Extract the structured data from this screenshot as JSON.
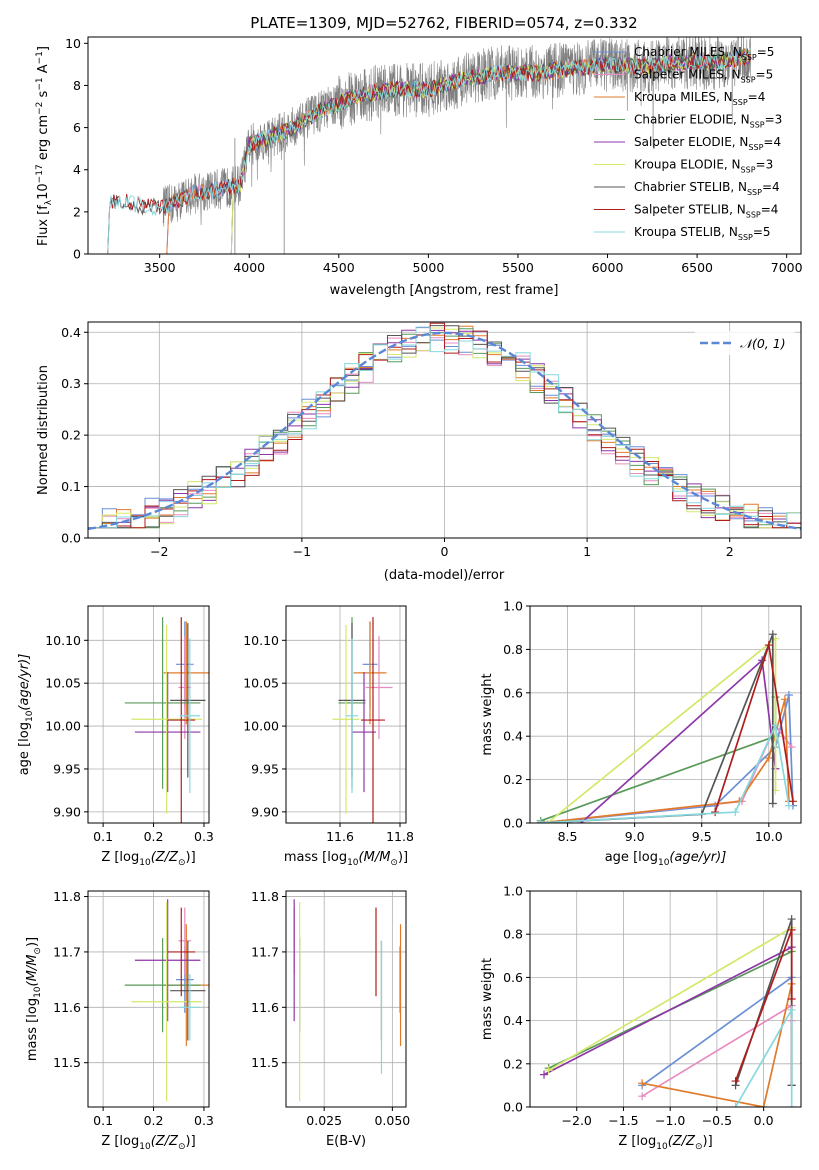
{
  "colors": {
    "Chabrier MILES": "#6a8fd6",
    "Salpeter MILES": "#e88bc0",
    "Kroupa MILES": "#e07b2a",
    "Chabrier ELODIE": "#5a9a5a",
    "Salpeter ELODIE": "#8e35a8",
    "Kroupa ELODIE": "#d4e86a",
    "Chabrier STELIB": "#555555",
    "Salpeter STELIB": "#b01c1c",
    "Kroupa STELIB": "#86d8de",
    "data": "#808080",
    "normal": "#5b88d6"
  },
  "chart_data": [
    {
      "id": "spectrum",
      "type": "line",
      "title": "PLATE=1309, MJD=52762, FIBERID=0574, z=0.332",
      "xlabel": "wavelength [Angstrom, rest frame]",
      "ylabel": "Flux [f",
      "ylabel_sub": "λ",
      "ylabel_rest": "10",
      "ylabel_sup1": "−17",
      "ylabel_mid": " erg cm",
      "ylabel_sup2": "−2",
      "ylabel_mid2": " s",
      "ylabel_sup3": "−1",
      "ylabel_end": " A",
      "ylabel_sup4": "−1",
      "ylabel_close": "]",
      "xlim": [
        3100,
        7080
      ],
      "ylim": [
        0,
        10.3
      ],
      "xticks": [
        "3500",
        "4000",
        "4500",
        "5000",
        "5500",
        "6000",
        "6500",
        "7000"
      ],
      "yticks": [
        "0",
        "2",
        "4",
        "6",
        "8",
        "10"
      ],
      "legend": [
        {
          "name": "Chabrier MILES",
          "lib": "MILES",
          "n": "5"
        },
        {
          "name": "Salpeter MILES",
          "lib": "MILES",
          "n": "5"
        },
        {
          "name": "Kroupa MILES",
          "lib": "MILES",
          "n": "4"
        },
        {
          "name": "Chabrier ELODIE",
          "lib": "ELODIE",
          "n": "3"
        },
        {
          "name": "Salpeter ELODIE",
          "lib": "ELODIE",
          "n": "4"
        },
        {
          "name": "Kroupa ELODIE",
          "lib": "ELODIE",
          "n": "3"
        },
        {
          "name": "Chabrier STELIB",
          "lib": "STELIB",
          "n": "4"
        },
        {
          "name": "Salpeter STELIB",
          "lib": "STELIB",
          "n": "4"
        },
        {
          "name": "Kroupa STELIB",
          "lib": "STELIB",
          "n": "5"
        }
      ],
      "legend_prefix": "N",
      "legend_sub": "SSP",
      "legend_placement": "top-right",
      "continuum": [
        [
          3210,
          0
        ],
        [
          3220,
          2.5
        ],
        [
          3300,
          2.5
        ],
        [
          3450,
          2.2
        ],
        [
          3550,
          2.3
        ],
        [
          3700,
          2.9
        ],
        [
          3850,
          3.1
        ],
        [
          3950,
          3.3
        ],
        [
          4000,
          5.2
        ],
        [
          4200,
          5.8
        ],
        [
          4400,
          6.8
        ],
        [
          4600,
          7.5
        ],
        [
          4800,
          7.8
        ],
        [
          5000,
          7.8
        ],
        [
          5200,
          8.3
        ],
        [
          5400,
          8.6
        ],
        [
          5600,
          8.6
        ],
        [
          5800,
          8.8
        ],
        [
          6000,
          9.0
        ],
        [
          6200,
          8.9
        ],
        [
          6400,
          9.1
        ],
        [
          6600,
          9.1
        ],
        [
          6800,
          9.4
        ],
        [
          7000,
          9.4
        ]
      ],
      "model_starts": {
        "Chabrier MILES": 3540,
        "Salpeter MILES": 3540,
        "Kroupa MILES": 3540,
        "Chabrier ELODIE": 3900,
        "Salpeter ELODIE": 3900,
        "Kroupa ELODIE": 3900,
        "Chabrier STELIB": 3210,
        "Salpeter STELIB": 3210,
        "Kroupa STELIB": 3210
      },
      "data_range": [
        3520,
        6800
      ]
    },
    {
      "id": "residuals",
      "type": "line",
      "xlabel": "(data-model)/error",
      "ylabel": "Normed distribution",
      "xlim": [
        -2.5,
        2.5
      ],
      "ylim": [
        0,
        0.42
      ],
      "xticks": [
        -2,
        -1,
        0,
        1,
        2
      ],
      "xtick_labels": [
        "−2",
        "−1",
        "0",
        "1",
        "2"
      ],
      "yticks": [
        0.0,
        0.1,
        0.2,
        0.3,
        0.4
      ],
      "ytick_labels": [
        "0.0",
        "0.1",
        "0.2",
        "0.3",
        "0.4"
      ],
      "legend": "𝒩(0, 1)",
      "legend_placement": "top-right",
      "bin_width": 0.1
    },
    {
      "id": "age_vs_Z",
      "type": "scatter",
      "xlabel": "Z [log",
      "xlabel_sub": "10",
      "xlabel_rest": "(Z/Z",
      "xlabel_sub2": "⊙",
      "xlabel_end": ")]",
      "ylabel": "age  [log",
      "ylabel_sub": "10",
      "ylabel_rest": "(age/yr)]",
      "xlim": [
        0.07,
        0.31
      ],
      "ylim": [
        9.887,
        10.14
      ],
      "xticks": [
        0.1,
        0.2,
        0.3
      ],
      "xtick_labels": [
        "0.1",
        "0.2",
        "0.3"
      ],
      "yticks": [
        9.9,
        9.95,
        10.0,
        10.05,
        10.1
      ],
      "ytick_labels": [
        "9.90",
        "9.95",
        "10.00",
        "10.05",
        "10.10"
      ],
      "points": [
        {
          "s": "Chabrier MILES",
          "x": 0.262,
          "xe": 0.035,
          "y": 10.072,
          "ye": 0.05
        },
        {
          "s": "Salpeter MILES",
          "x": 0.262,
          "xe": 0.025,
          "y": 10.045,
          "ye": 0.06
        },
        {
          "s": "Kroupa MILES",
          "x": 0.265,
          "xe": 0.09,
          "y": 10.062,
          "ye": 0.06
        },
        {
          "s": "Chabrier ELODIE",
          "x": 0.218,
          "xe": 0.15,
          "y": 10.027,
          "ye": 0.1
        },
        {
          "s": "Salpeter ELODIE",
          "x": 0.228,
          "xe": 0.13,
          "y": 9.993,
          "ye": 0.07
        },
        {
          "s": "Kroupa ELODIE",
          "x": 0.226,
          "xe": 0.14,
          "y": 10.008,
          "ye": 0.11
        },
        {
          "s": "Chabrier STELIB",
          "x": 0.268,
          "xe": 0.07,
          "y": 10.03,
          "ye": 0.09
        },
        {
          "s": "Salpeter STELIB",
          "x": 0.255,
          "xe": 0.055,
          "y": 10.007,
          "ye": 0.12
        },
        {
          "s": "Kroupa STELIB",
          "x": 0.272,
          "xe": 0.04,
          "y": 10.012,
          "ye": 0.09
        }
      ]
    },
    {
      "id": "age_vs_mass",
      "type": "scatter",
      "xlabel": "mass [log",
      "xlabel_sub": "10",
      "xlabel_rest": "(M/M",
      "xlabel_sub2": "⊙",
      "xlabel_end": ")]",
      "xlim": [
        11.42,
        11.82
      ],
      "ylim": [
        9.887,
        10.14
      ],
      "xticks": [
        11.6,
        11.8
      ],
      "xtick_labels": [
        "11.6",
        "11.8"
      ],
      "yticks": [
        9.9,
        9.95,
        10.0,
        10.05,
        10.1
      ],
      "ytick_labels": [
        "9.90",
        "9.95",
        "10.00",
        "10.05",
        "10.10"
      ],
      "points": [
        {
          "s": "Chabrier MILES",
          "x": 11.7,
          "xe": 0.05,
          "y": 10.072,
          "ye": 0.05
        },
        {
          "s": "Salpeter MILES",
          "x": 11.73,
          "xe": 0.09,
          "y": 10.045,
          "ye": 0.06
        },
        {
          "s": "Kroupa MILES",
          "x": 11.7,
          "xe": 0.11,
          "y": 10.062,
          "ye": 0.06
        },
        {
          "s": "Chabrier ELODIE",
          "x": 11.64,
          "xe": 0.09,
          "y": 10.027,
          "ye": 0.1
        },
        {
          "s": "Salpeter ELODIE",
          "x": 11.68,
          "xe": 0.08,
          "y": 9.993,
          "ye": 0.07
        },
        {
          "s": "Kroupa ELODIE",
          "x": 11.62,
          "xe": 0.09,
          "y": 10.008,
          "ye": 0.11
        },
        {
          "s": "Chabrier STELIB",
          "x": 11.64,
          "xe": 0.09,
          "y": 10.03,
          "ye": 0.09
        },
        {
          "s": "Salpeter STELIB",
          "x": 11.71,
          "xe": 0.08,
          "y": 10.007,
          "ye": 0.12
        },
        {
          "s": "Kroupa STELIB",
          "x": 11.64,
          "xe": 0.04,
          "y": 10.012,
          "ye": 0.09
        }
      ]
    },
    {
      "id": "weight_vs_age",
      "type": "line",
      "xlabel": "age  [log",
      "xlabel_sub": "10",
      "xlabel_rest": "(age/yr)]",
      "ylabel": "mass weight",
      "xlim": [
        8.22,
        10.24
      ],
      "ylim": [
        0,
        1.0
      ],
      "xticks": [
        8.5,
        9.0,
        9.5,
        10.0
      ],
      "xtick_labels": [
        "8.5",
        "9.0",
        "9.5",
        "10.0"
      ],
      "yticks": [
        0,
        0.2,
        0.4,
        0.6,
        0.8,
        1.0
      ],
      "ytick_labels": [
        "0.0",
        "0.2",
        "0.4",
        "0.6",
        "0.8",
        "1.0"
      ],
      "series": [
        {
          "s": "Chabrier MILES",
          "x": [
            8.3,
            9.6,
            10.05,
            10.15,
            10.18
          ],
          "y": [
            0.0,
            0.08,
            0.35,
            0.59,
            0.08
          ]
        },
        {
          "s": "Salpeter MILES",
          "x": [
            8.3,
            9.8,
            10.05,
            10.17
          ],
          "y": [
            0.0,
            0.1,
            0.45,
            0.35
          ]
        },
        {
          "s": "Kroupa MILES",
          "x": [
            8.3,
            9.78,
            10.0,
            10.12,
            10.15
          ],
          "y": [
            0.0,
            0.1,
            0.3,
            0.57,
            0.1
          ]
        },
        {
          "s": "Chabrier ELODIE",
          "x": [
            8.3,
            10.05,
            10.05
          ],
          "y": [
            0.01,
            0.4,
            0.58
          ]
        },
        {
          "s": "Salpeter ELODIE",
          "x": [
            8.6,
            9.95,
            10.05
          ],
          "y": [
            0.0,
            0.75,
            0.25
          ]
        },
        {
          "s": "Kroupa ELODIE",
          "x": [
            8.35,
            10.05,
            10.05
          ],
          "y": [
            0.0,
            0.85,
            0.15
          ]
        },
        {
          "s": "Chabrier STELIB",
          "x": [
            8.3,
            9.5,
            10.03,
            10.03
          ],
          "y": [
            0.0,
            0.04,
            0.87,
            0.09
          ]
        },
        {
          "s": "Salpeter STELIB",
          "x": [
            9.6,
            10.0,
            10.18
          ],
          "y": [
            0.05,
            0.82,
            0.1
          ]
        },
        {
          "s": "Kroupa STELIB",
          "x": [
            8.3,
            9.75,
            10.05,
            10.15
          ],
          "y": [
            0.0,
            0.05,
            0.45,
            0.08
          ]
        }
      ]
    },
    {
      "id": "mass_vs_Z",
      "type": "scatter",
      "xlabel": "Z [log",
      "xlabel_sub": "10",
      "xlabel_rest": "(Z/Z",
      "xlabel_sub2": "⊙",
      "xlabel_end": ")]",
      "ylabel": "mass [log",
      "ylabel_sub": "10",
      "ylabel_rest": "(M/M",
      "ylabel_sub2": "⊙",
      "ylabel_end": ")]",
      "xlim": [
        0.07,
        0.31
      ],
      "ylim": [
        11.42,
        11.81
      ],
      "xticks": [
        0.1,
        0.2,
        0.3
      ],
      "xtick_labels": [
        "0.1",
        "0.2",
        "0.3"
      ],
      "yticks": [
        11.5,
        11.6,
        11.7,
        11.8
      ],
      "ytick_labels": [
        "11.5",
        "11.6",
        "11.7",
        "11.8"
      ],
      "points": [
        {
          "s": "Chabrier MILES",
          "x": 0.262,
          "xe": 0.035,
          "y": 11.65,
          "ye": 0.06
        },
        {
          "s": "Salpeter MILES",
          "x": 0.262,
          "xe": 0.025,
          "y": 11.72,
          "ye": 0.06
        },
        {
          "s": "Kroupa MILES",
          "x": 0.265,
          "xe": 0.09,
          "y": 11.64,
          "ye": 0.11
        },
        {
          "s": "Chabrier ELODIE",
          "x": 0.218,
          "xe": 0.15,
          "y": 11.64,
          "ye": 0.085
        },
        {
          "s": "Salpeter ELODIE",
          "x": 0.228,
          "xe": 0.13,
          "y": 11.685,
          "ye": 0.11
        },
        {
          "s": "Kroupa ELODIE",
          "x": 0.226,
          "xe": 0.14,
          "y": 11.61,
          "ye": 0.18
        },
        {
          "s": "Chabrier STELIB",
          "x": 0.268,
          "xe": 0.07,
          "y": 11.63,
          "ye": 0.09
        },
        {
          "s": "Salpeter STELIB",
          "x": 0.255,
          "xe": 0.055,
          "y": 11.7,
          "ye": 0.08
        },
        {
          "s": "Kroupa STELIB",
          "x": 0.272,
          "xe": 0.04,
          "y": 11.6,
          "ye": 0.06
        }
      ]
    },
    {
      "id": "mass_vs_EBV",
      "type": "scatter",
      "xlabel": "E(B-V)",
      "xlim": [
        0.011,
        0.055
      ],
      "ylim": [
        11.42,
        11.81
      ],
      "xticks": [
        0.025,
        0.05
      ],
      "xtick_labels": [
        "0.025",
        "0.050"
      ],
      "yticks": [
        11.5,
        11.6,
        11.7,
        11.8
      ],
      "ytick_labels": [
        "11.5",
        "11.6",
        "11.7",
        "11.8"
      ],
      "points": [
        {
          "s": "Chabrier MILES",
          "x": 0.0528,
          "y": 11.65,
          "ye": 0.06
        },
        {
          "s": "Salpeter MILES",
          "x": 0.014,
          "y": 11.72,
          "ye": 0.06
        },
        {
          "s": "Kroupa MILES",
          "x": 0.053,
          "y": 11.64,
          "ye": 0.11
        },
        {
          "s": "Chabrier ELODIE",
          "x": 0.016,
          "y": 11.64,
          "ye": 0.085
        },
        {
          "s": "Salpeter ELODIE",
          "x": 0.014,
          "y": 11.685,
          "ye": 0.11
        },
        {
          "s": "Kroupa ELODIE",
          "x": 0.016,
          "y": 11.61,
          "ye": 0.18
        },
        {
          "s": "Chabrier STELIB",
          "x": 0.046,
          "y": 11.63,
          "ye": 0.09
        },
        {
          "s": "Salpeter STELIB",
          "x": 0.044,
          "y": 11.7,
          "ye": 0.08
        },
        {
          "s": "Kroupa STELIB",
          "x": 0.046,
          "y": 11.6,
          "ye": 0.12
        }
      ]
    },
    {
      "id": "weight_vs_Z",
      "type": "line",
      "xlabel": "Z [log",
      "xlabel_sub": "10",
      "xlabel_rest": "(Z/Z",
      "xlabel_sub2": "⊙",
      "xlabel_end": ")]",
      "ylabel": "mass weight",
      "xlim": [
        -2.5,
        0.4
      ],
      "ylim": [
        0,
        1.0
      ],
      "xticks": [
        -2.0,
        -1.5,
        -1.0,
        -0.5,
        0.0
      ],
      "xtick_labels": [
        "−2.0",
        "−1.5",
        "−1.0",
        "−0.5",
        "0.0"
      ],
      "yticks": [
        0,
        0.2,
        0.4,
        0.6,
        0.8,
        1.0
      ],
      "ytick_labels": [
        "0.0",
        "0.2",
        "0.4",
        "0.6",
        "0.8",
        "1.0"
      ],
      "series": [
        {
          "s": "Chabrier MILES",
          "x": [
            -1.3,
            0.3,
            0.3
          ],
          "y": [
            0.1,
            0.6,
            0.1
          ]
        },
        {
          "s": "Salpeter MILES",
          "x": [
            -1.3,
            0.3,
            0.3
          ],
          "y": [
            0.05,
            0.47,
            0.4
          ]
        },
        {
          "s": "Kroupa MILES",
          "x": [
            -1.3,
            0.0,
            0.3,
            0.3
          ],
          "y": [
            0.11,
            0.0,
            0.57,
            0.1
          ]
        },
        {
          "s": "Chabrier ELODIE",
          "x": [
            -2.3,
            0.3
          ],
          "y": [
            0.18,
            0.72
          ]
        },
        {
          "s": "Salpeter ELODIE",
          "x": [
            -2.35,
            0.3
          ],
          "y": [
            0.15,
            0.74
          ]
        },
        {
          "s": "Kroupa ELODIE",
          "x": [
            -2.3,
            0.3
          ],
          "y": [
            0.17,
            0.83
          ]
        },
        {
          "s": "Chabrier STELIB",
          "x": [
            -0.3,
            0.3,
            0.3
          ],
          "y": [
            0.1,
            0.87,
            0.1
          ]
        },
        {
          "s": "Salpeter STELIB",
          "x": [
            -0.3,
            0.3,
            0.3
          ],
          "y": [
            0.12,
            0.82,
            0.5
          ]
        },
        {
          "s": "Kroupa STELIB",
          "x": [
            -0.3,
            0.3,
            0.3
          ],
          "y": [
            0.0,
            0.45,
            0.0
          ]
        }
      ]
    }
  ]
}
